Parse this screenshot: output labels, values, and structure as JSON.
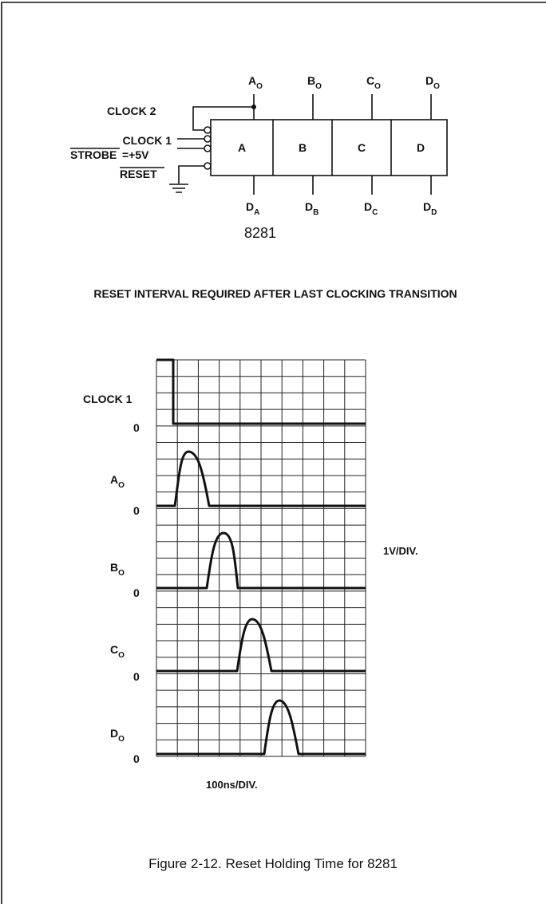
{
  "diagram": {
    "clock2": "CLOCK 2",
    "clock1": "CLOCK 1",
    "strobe": "STROBE",
    "strobe_value": "=+5V",
    "reset": "RESET",
    "blocks": [
      "A",
      "B",
      "C",
      "D"
    ],
    "outputs": [
      {
        "main": "A",
        "sub": "O"
      },
      {
        "main": "B",
        "sub": "O"
      },
      {
        "main": "C",
        "sub": "O"
      },
      {
        "main": "D",
        "sub": "O"
      }
    ],
    "inputs": [
      {
        "main": "D",
        "sub": "A"
      },
      {
        "main": "D",
        "sub": "B"
      },
      {
        "main": "D",
        "sub": "C"
      },
      {
        "main": "D",
        "sub": "D"
      }
    ],
    "part": "8281"
  },
  "scope": {
    "title": "RESET INTERVAL REQUIRED AFTER LAST CLOCKING TRANSITION",
    "traces": [
      {
        "main": "CLOCK 1",
        "zero": "0"
      },
      {
        "main": "A",
        "sub": "O",
        "zero": "0"
      },
      {
        "main": "B",
        "sub": "O",
        "zero": "0"
      },
      {
        "main": "C",
        "sub": "O",
        "zero": "0"
      },
      {
        "main": "D",
        "sub": "O",
        "zero": "0"
      }
    ],
    "vertical_scale": "1V/DIV.",
    "horizontal_scale": "100ns/DIV."
  },
  "caption": "Figure 2-12.  Reset Holding Time for 8281"
}
